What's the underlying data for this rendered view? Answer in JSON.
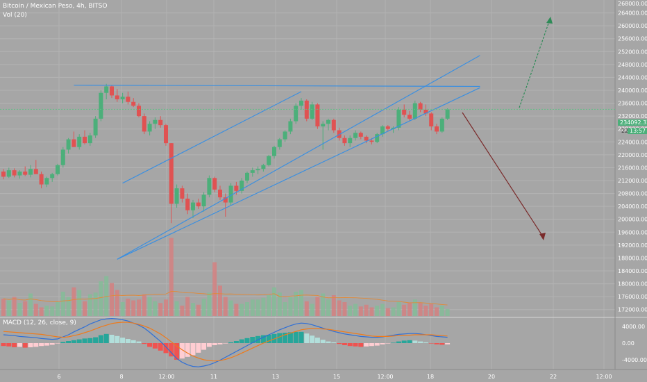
{
  "header": {
    "symbol": "Bitcoin / Mexican Peso, 4h, BITSO",
    "volume": "Vol (20)",
    "macd": "MACD (12, 26, close, 9)"
  },
  "colors": {
    "up": "#4caf7a",
    "down": "#e05252",
    "bg": "#a6a6a6",
    "trend": "#3b8fe0",
    "bear_arrow": "#7a2b2b",
    "bull_arrow": "#2e8b57"
  },
  "price_axis": [
    "264000.00",
    "260000.00",
    "256000.00",
    "252000.00",
    "248000.00",
    "244000.00",
    "240000.00",
    "236000.00",
    "232000.00",
    "228000.00",
    "224000.00",
    "220000.00",
    "216000.00",
    "212000.00",
    "208000.00",
    "204000.00",
    "200000.00",
    "196000.00",
    "192000.00",
    "188000.00",
    "184000.00",
    "180000.00",
    "176000.00",
    "172000.00"
  ],
  "top_axis_label": "268000.00",
  "current_price": "234092.32",
  "countdown": "13:57",
  "partial_price": "228",
  "macd_axis": [
    "4000.00",
    "0.00",
    "-4000.00"
  ],
  "time_axis": [
    "6",
    "8",
    "12:00",
    "11",
    "13",
    "15",
    "12:00",
    "18",
    "20",
    "22",
    "12:00"
  ],
  "chart_data": {
    "type": "candlestick",
    "y_range": [
      170000,
      268000
    ],
    "candles": [
      [
        214800,
        215600,
        212400,
        213200
      ],
      [
        213200,
        216000,
        212800,
        215200
      ],
      [
        215200,
        215800,
        213000,
        213600
      ],
      [
        213600,
        215200,
        212600,
        214800
      ],
      [
        214800,
        216400,
        213400,
        213800
      ],
      [
        213800,
        216800,
        213000,
        215600
      ],
      [
        215600,
        218400,
        214400,
        214000
      ],
      [
        214000,
        214800,
        209600,
        210800
      ],
      [
        210800,
        213200,
        210000,
        212800
      ],
      [
        212800,
        214400,
        211600,
        214000
      ],
      [
        214000,
        217200,
        213600,
        216800
      ],
      [
        216800,
        222400,
        216000,
        221600
      ],
      [
        221600,
        225200,
        220400,
        224800
      ],
      [
        224800,
        227200,
        222800,
        222400
      ],
      [
        222400,
        226400,
        221600,
        225600
      ],
      [
        225600,
        227600,
        223200,
        223600
      ],
      [
        223600,
        226800,
        222800,
        226000
      ],
      [
        226000,
        232000,
        225200,
        231200
      ],
      [
        231200,
        240000,
        230400,
        239200
      ],
      [
        239200,
        242000,
        237200,
        241200
      ],
      [
        241200,
        241600,
        237600,
        238400
      ],
      [
        238400,
        240400,
        236400,
        237200
      ],
      [
        237200,
        239200,
        236000,
        238000
      ],
      [
        238000,
        239600,
        235600,
        236400
      ],
      [
        236400,
        237600,
        234800,
        235200
      ],
      [
        235200,
        236000,
        231600,
        232000
      ],
      [
        232000,
        232800,
        226400,
        227200
      ],
      [
        227200,
        230400,
        226000,
        229600
      ],
      [
        229600,
        231600,
        228000,
        230800
      ],
      [
        230800,
        232000,
        228400,
        229200
      ],
      [
        229200,
        229600,
        222800,
        223600
      ],
      [
        223600,
        223600,
        198800,
        204800
      ],
      [
        204800,
        210800,
        203600,
        209600
      ],
      [
        209600,
        210400,
        205200,
        206400
      ],
      [
        206400,
        208000,
        201600,
        202800
      ],
      [
        202800,
        206000,
        200400,
        205200
      ],
      [
        205200,
        206400,
        203200,
        204000
      ],
      [
        204000,
        208400,
        202400,
        207600
      ],
      [
        207600,
        213600,
        206800,
        212800
      ],
      [
        212800,
        213200,
        208400,
        209200
      ],
      [
        209200,
        210400,
        206000,
        206800
      ],
      [
        206800,
        208000,
        200800,
        205200
      ],
      [
        205200,
        211200,
        204400,
        210400
      ],
      [
        210400,
        211600,
        207600,
        208800
      ],
      [
        208800,
        212800,
        208000,
        212000
      ],
      [
        212000,
        214800,
        211200,
        214400
      ],
      [
        214400,
        216000,
        213200,
        215200
      ],
      [
        215200,
        216400,
        214000,
        215600
      ],
      [
        215600,
        217200,
        214800,
        216800
      ],
      [
        216800,
        220000,
        216400,
        219600
      ],
      [
        219600,
        222800,
        218800,
        222400
      ],
      [
        222400,
        225200,
        221600,
        224800
      ],
      [
        224800,
        227600,
        224000,
        227200
      ],
      [
        227200,
        231200,
        226400,
        230400
      ],
      [
        230400,
        236000,
        229600,
        235200
      ],
      [
        235200,
        237600,
        234000,
        236800
      ],
      [
        236800,
        237200,
        230400,
        231200
      ],
      [
        231200,
        236400,
        230800,
        235600
      ],
      [
        235600,
        236000,
        228000,
        228800
      ],
      [
        228800,
        230400,
        221600,
        229600
      ],
      [
        229600,
        231200,
        227600,
        230800
      ],
      [
        230800,
        231200,
        226800,
        227600
      ],
      [
        227600,
        228400,
        224400,
        225200
      ],
      [
        225200,
        226000,
        222800,
        223600
      ],
      [
        223600,
        226000,
        222400,
        225200
      ],
      [
        225200,
        227600,
        224400,
        226800
      ],
      [
        226800,
        227200,
        224800,
        225600
      ],
      [
        225600,
        226000,
        223600,
        224400
      ],
      [
        224400,
        225200,
        223200,
        224000
      ],
      [
        224000,
        226800,
        223600,
        226400
      ],
      [
        226400,
        229200,
        225600,
        228800
      ],
      [
        228800,
        229200,
        227200,
        228000
      ],
      [
        228000,
        228800,
        226800,
        228400
      ],
      [
        228400,
        234800,
        227600,
        234000
      ],
      [
        234000,
        235600,
        231600,
        232400
      ],
      [
        232400,
        233600,
        230400,
        231200
      ],
      [
        231200,
        236800,
        230800,
        236000
      ],
      [
        236000,
        236400,
        233200,
        234000
      ],
      [
        234000,
        235600,
        232000,
        232800
      ],
      [
        232800,
        233200,
        227600,
        228800
      ],
      [
        228800,
        229600,
        226400,
        227200
      ],
      [
        227200,
        231600,
        226800,
        231200
      ],
      [
        231200,
        234400,
        230800,
        234092
      ]
    ],
    "volume": [
      20,
      18,
      22,
      15,
      17,
      26,
      14,
      10,
      12,
      11,
      16,
      28,
      22,
      33,
      30,
      17,
      25,
      27,
      40,
      46,
      38,
      30,
      16,
      20,
      18,
      19,
      25,
      22,
      17,
      15,
      19,
      90,
      17,
      12,
      22,
      15,
      13,
      20,
      27,
      62,
      35,
      22,
      18,
      14,
      14,
      16,
      19,
      19,
      21,
      24,
      33,
      27,
      16,
      22,
      28,
      30,
      17,
      14,
      22,
      26,
      19,
      24,
      18,
      16,
      12,
      14,
      11,
      13,
      10,
      12,
      14,
      9,
      10,
      16,
      13,
      15,
      19,
      15,
      12,
      14,
      10,
      12,
      8
    ],
    "macd_hist": [
      -700,
      -800,
      -1000,
      -900,
      -1100,
      -1000,
      -900,
      -700,
      -600,
      -400,
      -100,
      300,
      500,
      700,
      900,
      1100,
      1200,
      1400,
      1900,
      2200,
      2000,
      1700,
      1300,
      1000,
      700,
      400,
      -200,
      -900,
      -1300,
      -1800,
      -2400,
      -3200,
      -4000,
      -3700,
      -3300,
      -2900,
      -2300,
      -1600,
      -900,
      -500,
      -300,
      -100,
      200,
      500,
      900,
      1200,
      1500,
      1700,
      1900,
      2000,
      2200,
      2400,
      2500,
      2600,
      2700,
      2700,
      2300,
      1800,
      1300,
      800,
      400,
      200,
      -200,
      -500,
      -700,
      -800,
      -900,
      -800,
      -700,
      -600,
      -300,
      -100,
      100,
      400,
      600,
      700,
      600,
      400,
      200,
      -100,
      -300,
      -400,
      -300
    ],
    "macd_line": [
      2000,
      1900,
      1800,
      1600,
      1500,
      1400,
      1300,
      1100,
      1000,
      900,
      1000,
      1500,
      2000,
      2700,
      3300,
      3900,
      4600,
      5100,
      5600,
      5800,
      5900,
      5800,
      5600,
      5300,
      4800,
      4300,
      3600,
      2600,
      1500,
      400,
      -900,
      -2300,
      -3700,
      -4600,
      -5200,
      -5600,
      -5700,
      -5500,
      -5200,
      -4700,
      -4100,
      -3400,
      -2700,
      -2000,
      -1300,
      -600,
      100,
      800,
      1400,
      2000,
      2600,
      3200,
      3700,
      4200,
      4600,
      4800,
      4700,
      4400,
      4000,
      3600,
      3200,
      2800,
      2500,
      2200,
      2000,
      1800,
      1600,
      1500,
      1400,
      1400,
      1500,
      1700,
      1900,
      2100,
      2200,
      2300,
      2300,
      2200,
      2000,
      1800,
      1600,
      1500,
      1400
    ],
    "signal_line": [
      2800,
      2700,
      2600,
      2500,
      2400,
      2300,
      2200,
      2100,
      1900,
      1700,
      1500,
      1400,
      1500,
      1800,
      2100,
      2500,
      2900,
      3400,
      3900,
      4300,
      4700,
      4900,
      5000,
      5000,
      4800,
      4500,
      4100,
      3600,
      2900,
      2200,
      1300,
      300,
      -700,
      -1600,
      -2400,
      -3100,
      -3600,
      -4000,
      -4200,
      -4300,
      -4200,
      -3900,
      -3500,
      -3000,
      -2400,
      -1800,
      -1200,
      -600,
      0,
      500,
      1000,
      1500,
      2000,
      2400,
      2800,
      3200,
      3400,
      3500,
      3500,
      3400,
      3300,
      3100,
      2900,
      2700,
      2500,
      2300,
      2100,
      1900,
      1700,
      1600,
      1600,
      1600,
      1700,
      1800,
      1900,
      1900,
      2000,
      2000,
      2000,
      2000,
      1900,
      1800,
      1700
    ],
    "lines": [
      {
        "name": "resistance",
        "from": [
          13,
          241600
        ],
        "to": [
          88,
          241200
        ]
      },
      {
        "name": "channel-top",
        "from": [
          22,
          211200
        ],
        "to": [
          55,
          239600
        ]
      },
      {
        "name": "support-1",
        "from": [
          21,
          187600
        ],
        "to": [
          88,
          250800
        ]
      },
      {
        "name": "support-2",
        "from": [
          21,
          187600
        ],
        "to": [
          88,
          240800
        ]
      }
    ]
  }
}
